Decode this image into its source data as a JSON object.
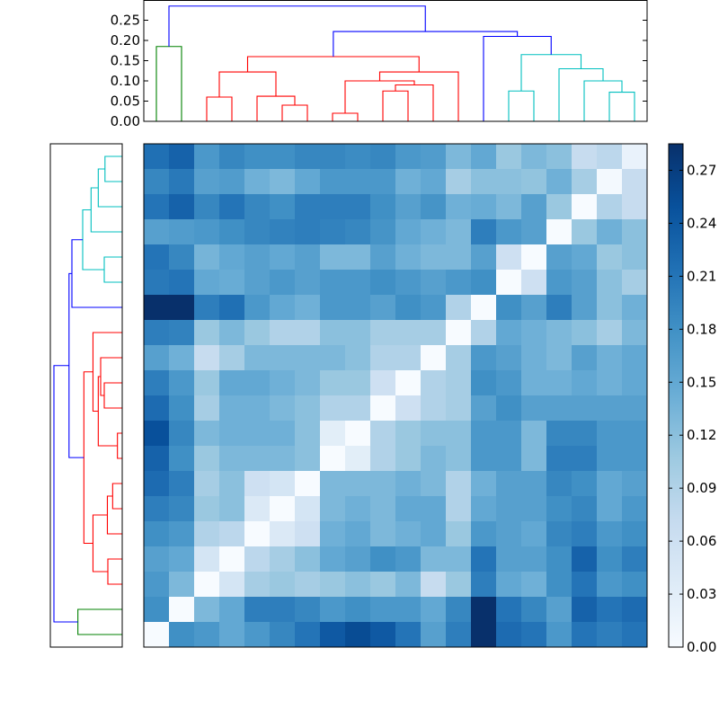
{
  "chart_data": {
    "type": "heatmap",
    "title": "",
    "xlabel": "",
    "ylabel": "",
    "colormap": "Blues",
    "colorbar": {
      "range": [
        0,
        0.285
      ],
      "ticks": [
        "0.00",
        "0.03",
        "0.06",
        "0.09",
        "0.12",
        "0.15",
        "0.18",
        "0.21",
        "0.24",
        "0.27"
      ]
    },
    "top_dendrogram": {
      "ylim": [
        0,
        0.3
      ],
      "ticks": [
        "0.00",
        "0.05",
        "0.10",
        "0.15",
        "0.20",
        "0.25"
      ],
      "links": [
        {
          "color": "#008000",
          "l": 0.5,
          "r": 1.5,
          "lh": 0,
          "rh": 0,
          "h": 0.185
        },
        {
          "color": "#ff0000",
          "l": 2.5,
          "r": 3.5,
          "lh": 0,
          "rh": 0,
          "h": 0.06
        },
        {
          "color": "#ff0000",
          "l": 5.5,
          "r": 6.5,
          "lh": 0,
          "rh": 0,
          "h": 0.04
        },
        {
          "color": "#ff0000",
          "l": 4.5,
          "r": 6.0,
          "lh": 0,
          "rh": 0.04,
          "h": 0.062
        },
        {
          "color": "#ff0000",
          "l": 3.0,
          "r": 5.25,
          "lh": 0.06,
          "rh": 0.062,
          "h": 0.122
        },
        {
          "color": "#ff0000",
          "l": 7.5,
          "r": 8.5,
          "lh": 0,
          "rh": 0,
          "h": 0.02
        },
        {
          "color": "#ff0000",
          "l": 9.5,
          "r": 10.5,
          "lh": 0,
          "rh": 0,
          "h": 0.075
        },
        {
          "color": "#ff0000",
          "l": 10.0,
          "r": 11.5,
          "lh": 0.075,
          "rh": 0,
          "h": 0.09
        },
        {
          "color": "#ff0000",
          "l": 8.0,
          "r": 10.75,
          "lh": 0.02,
          "rh": 0.09,
          "h": 0.1
        },
        {
          "color": "#ff0000",
          "l": 9.375,
          "r": 12.5,
          "lh": 0.1,
          "rh": 0,
          "h": 0.122
        },
        {
          "color": "#ff0000",
          "l": 4.125,
          "r": 10.9375,
          "lh": 0.122,
          "rh": 0.122,
          "h": 0.16
        },
        {
          "color": "#00bfbf",
          "l": 14.5,
          "r": 15.5,
          "lh": 0,
          "rh": 0,
          "h": 0.075
        },
        {
          "color": "#00bfbf",
          "l": 18.5,
          "r": 19.5,
          "lh": 0,
          "rh": 0,
          "h": 0.072
        },
        {
          "color": "#00bfbf",
          "l": 17.5,
          "r": 19.0,
          "lh": 0,
          "rh": 0.072,
          "h": 0.1
        },
        {
          "color": "#00bfbf",
          "l": 16.5,
          "r": 18.25,
          "lh": 0,
          "rh": 0.1,
          "h": 0.13
        },
        {
          "color": "#00bfbf",
          "l": 15.0,
          "r": 17.375,
          "lh": 0.075,
          "rh": 0.13,
          "h": 0.165
        },
        {
          "color": "#0000ff",
          "l": 13.5,
          "r": 16.1875,
          "lh": 0,
          "rh": 0.165,
          "h": 0.21
        },
        {
          "color": "#0000ff",
          "l": 7.53125,
          "r": 14.84375,
          "lh": 0.16,
          "rh": 0.21,
          "h": 0.222
        },
        {
          "color": "#0000ff",
          "l": 1.0,
          "r": 11.1875,
          "lh": 0.185,
          "rh": 0.222,
          "h": 0.285
        }
      ]
    },
    "left_dendrogram": {
      "xlim": [
        0,
        0.3
      ],
      "links": [
        {
          "color": "#008000",
          "l": 0.5,
          "r": 1.5,
          "lh": 0,
          "rh": 0,
          "h": 0.185
        },
        {
          "color": "#ff0000",
          "l": 2.5,
          "r": 3.5,
          "lh": 0,
          "rh": 0,
          "h": 0.06
        },
        {
          "color": "#ff0000",
          "l": 5.5,
          "r": 6.5,
          "lh": 0,
          "rh": 0,
          "h": 0.04
        },
        {
          "color": "#ff0000",
          "l": 4.5,
          "r": 6.0,
          "lh": 0,
          "rh": 0.04,
          "h": 0.062
        },
        {
          "color": "#ff0000",
          "l": 3.0,
          "r": 5.25,
          "lh": 0.06,
          "rh": 0.062,
          "h": 0.122
        },
        {
          "color": "#ff0000",
          "l": 7.5,
          "r": 8.5,
          "lh": 0,
          "rh": 0,
          "h": 0.02
        },
        {
          "color": "#ff0000",
          "l": 9.5,
          "r": 10.5,
          "lh": 0,
          "rh": 0,
          "h": 0.075
        },
        {
          "color": "#ff0000",
          "l": 10.0,
          "r": 11.5,
          "lh": 0.075,
          "rh": 0,
          "h": 0.09
        },
        {
          "color": "#ff0000",
          "l": 8.0,
          "r": 10.75,
          "lh": 0.02,
          "rh": 0.09,
          "h": 0.1
        },
        {
          "color": "#ff0000",
          "l": 9.375,
          "r": 12.5,
          "lh": 0.1,
          "rh": 0,
          "h": 0.122
        },
        {
          "color": "#ff0000",
          "l": 4.125,
          "r": 10.9375,
          "lh": 0.122,
          "rh": 0.122,
          "h": 0.16
        },
        {
          "color": "#00bfbf",
          "l": 14.5,
          "r": 15.5,
          "lh": 0,
          "rh": 0,
          "h": 0.075
        },
        {
          "color": "#00bfbf",
          "l": 18.5,
          "r": 19.5,
          "lh": 0,
          "rh": 0,
          "h": 0.072
        },
        {
          "color": "#00bfbf",
          "l": 17.5,
          "r": 19.0,
          "lh": 0,
          "rh": 0.072,
          "h": 0.1
        },
        {
          "color": "#00bfbf",
          "l": 16.5,
          "r": 18.25,
          "lh": 0,
          "rh": 0.1,
          "h": 0.13
        },
        {
          "color": "#00bfbf",
          "l": 15.0,
          "r": 17.375,
          "lh": 0.075,
          "rh": 0.13,
          "h": 0.165
        },
        {
          "color": "#0000ff",
          "l": 13.5,
          "r": 16.1875,
          "lh": 0,
          "rh": 0.165,
          "h": 0.21
        },
        {
          "color": "#0000ff",
          "l": 7.53125,
          "r": 14.84375,
          "lh": 0.16,
          "rh": 0.21,
          "h": 0.222
        },
        {
          "color": "#0000ff",
          "l": 1.0,
          "r": 11.1875,
          "lh": 0.185,
          "rh": 0.222,
          "h": 0.285
        }
      ]
    },
    "matrix": [
      [
        0.215,
        0.23,
        0.17,
        0.19,
        0.18,
        0.18,
        0.19,
        0.19,
        0.185,
        0.19,
        0.17,
        0.165,
        0.13,
        0.15,
        0.11,
        0.13,
        0.12,
        0.07,
        0.08,
        0.02
      ],
      [
        0.19,
        0.205,
        0.16,
        0.165,
        0.14,
        0.13,
        0.15,
        0.17,
        0.17,
        0.17,
        0.14,
        0.15,
        0.1,
        0.12,
        0.12,
        0.115,
        0.14,
        0.1,
        0.005,
        0.07
      ],
      [
        0.21,
        0.23,
        0.19,
        0.21,
        0.19,
        0.18,
        0.2,
        0.2,
        0.2,
        0.18,
        0.16,
        0.175,
        0.14,
        0.145,
        0.13,
        0.16,
        0.11,
        0.0,
        0.09,
        0.07
      ],
      [
        0.16,
        0.165,
        0.17,
        0.18,
        0.19,
        0.195,
        0.2,
        0.195,
        0.19,
        0.175,
        0.15,
        0.14,
        0.13,
        0.2,
        0.17,
        0.16,
        0.0,
        0.11,
        0.14,
        0.12
      ],
      [
        0.21,
        0.19,
        0.135,
        0.15,
        0.16,
        0.15,
        0.16,
        0.13,
        0.13,
        0.16,
        0.14,
        0.13,
        0.13,
        0.16,
        0.06,
        0.0,
        0.16,
        0.15,
        0.11,
        0.12
      ],
      [
        0.205,
        0.21,
        0.15,
        0.145,
        0.16,
        0.17,
        0.16,
        0.17,
        0.17,
        0.18,
        0.17,
        0.16,
        0.17,
        0.18,
        0.0,
        0.06,
        0.17,
        0.16,
        0.12,
        0.1
      ],
      [
        0.29,
        0.285,
        0.2,
        0.215,
        0.17,
        0.15,
        0.14,
        0.17,
        0.17,
        0.16,
        0.18,
        0.17,
        0.09,
        0.0,
        0.18,
        0.16,
        0.2,
        0.16,
        0.12,
        0.14
      ],
      [
        0.2,
        0.195,
        0.11,
        0.13,
        0.11,
        0.09,
        0.09,
        0.12,
        0.12,
        0.1,
        0.1,
        0.1,
        0.0,
        0.09,
        0.15,
        0.14,
        0.13,
        0.12,
        0.1,
        0.13
      ],
      [
        0.16,
        0.14,
        0.07,
        0.1,
        0.13,
        0.13,
        0.13,
        0.13,
        0.12,
        0.09,
        0.09,
        0.0,
        0.1,
        0.17,
        0.16,
        0.14,
        0.13,
        0.16,
        0.14,
        0.15
      ],
      [
        0.2,
        0.17,
        0.11,
        0.15,
        0.15,
        0.14,
        0.13,
        0.11,
        0.11,
        0.06,
        0.0,
        0.09,
        0.1,
        0.18,
        0.17,
        0.14,
        0.14,
        0.15,
        0.14,
        0.15
      ],
      [
        0.22,
        0.18,
        0.1,
        0.14,
        0.14,
        0.13,
        0.12,
        0.09,
        0.09,
        0.0,
        0.06,
        0.09,
        0.1,
        0.16,
        0.18,
        0.16,
        0.16,
        0.16,
        0.16,
        0.16
      ],
      [
        0.25,
        0.19,
        0.13,
        0.14,
        0.14,
        0.14,
        0.12,
        0.03,
        0.0,
        0.09,
        0.11,
        0.12,
        0.12,
        0.17,
        0.17,
        0.13,
        0.19,
        0.19,
        0.17,
        0.17
      ],
      [
        0.23,
        0.18,
        0.11,
        0.13,
        0.13,
        0.13,
        0.12,
        0.0,
        0.03,
        0.09,
        0.11,
        0.13,
        0.12,
        0.17,
        0.17,
        0.13,
        0.2,
        0.2,
        0.17,
        0.17
      ],
      [
        0.22,
        0.2,
        0.1,
        0.12,
        0.06,
        0.05,
        0.0,
        0.13,
        0.13,
        0.13,
        0.14,
        0.13,
        0.09,
        0.14,
        0.16,
        0.16,
        0.19,
        0.18,
        0.15,
        0.16
      ],
      [
        0.2,
        0.19,
        0.11,
        0.12,
        0.04,
        0.0,
        0.05,
        0.13,
        0.14,
        0.13,
        0.15,
        0.15,
        0.09,
        0.15,
        0.16,
        0.16,
        0.18,
        0.19,
        0.15,
        0.17
      ],
      [
        0.18,
        0.17,
        0.09,
        0.08,
        0.0,
        0.04,
        0.06,
        0.14,
        0.15,
        0.13,
        0.14,
        0.15,
        0.11,
        0.17,
        0.16,
        0.15,
        0.19,
        0.2,
        0.17,
        0.18
      ],
      [
        0.16,
        0.15,
        0.05,
        0.0,
        0.08,
        0.1,
        0.12,
        0.15,
        0.16,
        0.18,
        0.17,
        0.13,
        0.13,
        0.21,
        0.16,
        0.16,
        0.18,
        0.23,
        0.18,
        0.2
      ],
      [
        0.17,
        0.13,
        0.0,
        0.05,
        0.1,
        0.11,
        0.1,
        0.11,
        0.12,
        0.11,
        0.13,
        0.07,
        0.11,
        0.2,
        0.15,
        0.14,
        0.18,
        0.21,
        0.17,
        0.18
      ],
      [
        0.18,
        0.0,
        0.13,
        0.15,
        0.2,
        0.2,
        0.19,
        0.17,
        0.18,
        0.17,
        0.17,
        0.15,
        0.19,
        0.285,
        0.21,
        0.19,
        0.16,
        0.23,
        0.21,
        0.22
      ],
      [
        0.0,
        0.18,
        0.17,
        0.15,
        0.17,
        0.19,
        0.21,
        0.24,
        0.255,
        0.24,
        0.21,
        0.16,
        0.2,
        0.285,
        0.22,
        0.21,
        0.17,
        0.21,
        0.2,
        0.21
      ]
    ]
  }
}
